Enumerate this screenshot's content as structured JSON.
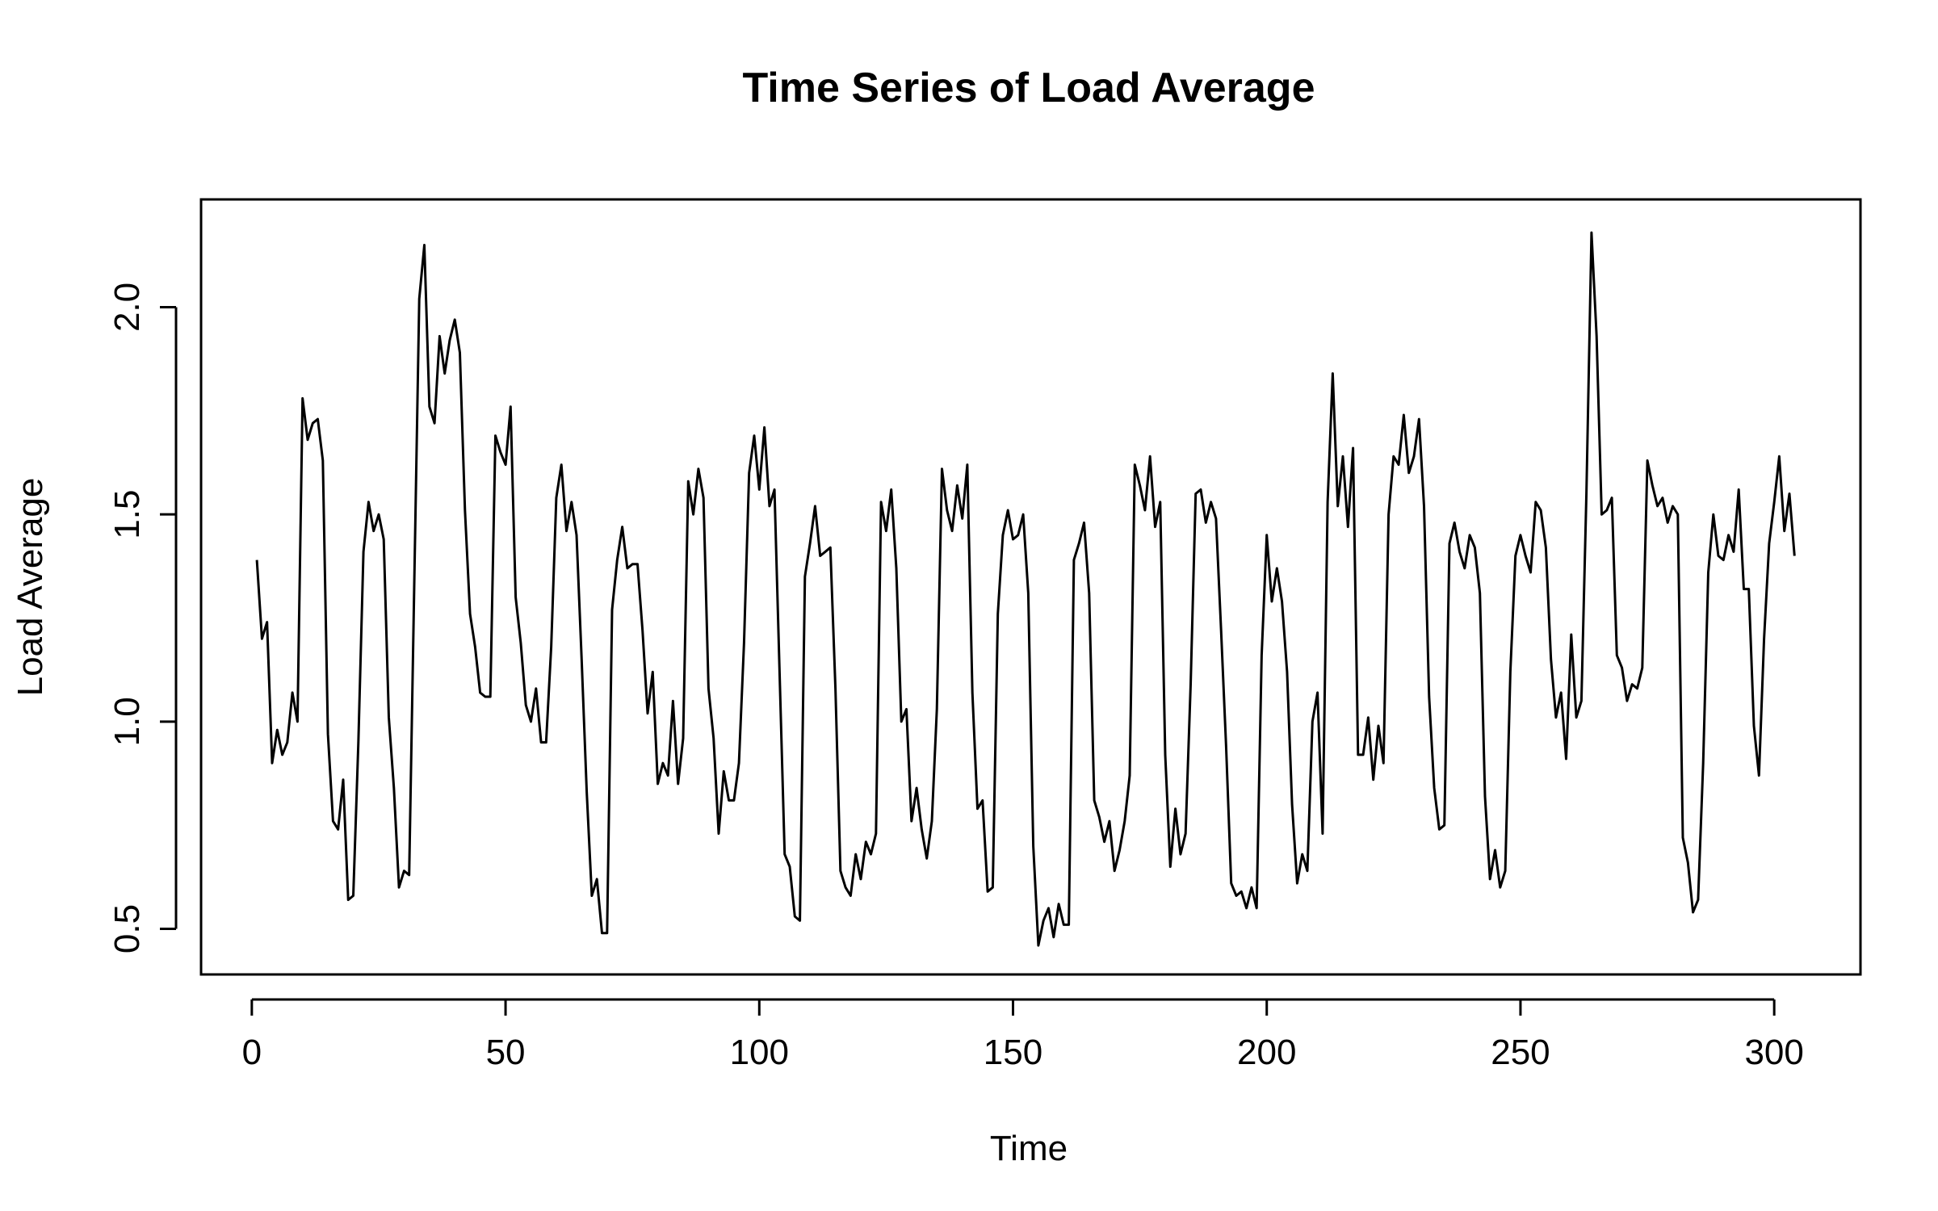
{
  "chart_data": {
    "type": "line",
    "title": "Time Series of Load Average",
    "xlabel": "Time",
    "ylabel": "Load Average",
    "xlim": [
      -10,
      317
    ],
    "ylim": [
      0.39,
      2.26
    ],
    "xticks": [
      0,
      50,
      100,
      150,
      200,
      250,
      300
    ],
    "yticks": [
      0.5,
      1.0,
      1.5,
      2.0
    ],
    "xtick_labels": [
      "0",
      "50",
      "100",
      "150",
      "200",
      "250",
      "300"
    ],
    "ytick_labels": [
      "0.5",
      "1.0",
      "1.5",
      "2.0"
    ],
    "grid": false,
    "legend": "none",
    "line_color": "#000000",
    "series": [
      {
        "x": [
          1,
          2,
          3,
          4,
          5,
          6,
          7,
          8,
          9,
          10,
          11,
          12,
          13,
          14,
          15,
          16,
          17,
          18,
          19,
          20,
          21,
          22,
          23,
          24,
          25,
          26,
          27,
          28,
          29,
          30,
          31,
          32,
          33,
          34,
          35,
          36,
          37,
          38,
          39,
          40,
          41,
          42,
          43,
          44,
          45,
          46,
          47,
          48,
          49,
          50,
          51,
          52,
          53,
          54,
          55,
          56,
          57,
          58,
          59,
          60,
          61,
          62,
          63,
          64,
          65,
          66,
          67,
          68,
          69,
          70,
          71,
          72,
          73,
          74,
          75,
          76,
          77,
          78,
          79,
          80,
          81,
          82,
          83,
          84,
          85,
          86,
          87,
          88,
          89,
          90,
          91,
          92,
          93,
          94,
          95,
          96,
          97,
          98,
          99,
          100,
          101,
          102,
          103,
          104,
          105,
          106,
          107,
          108,
          109,
          110,
          111,
          112,
          113,
          114,
          115,
          116,
          117,
          118,
          119,
          120,
          121,
          122,
          123,
          124,
          125,
          126,
          127,
          128,
          129,
          130,
          131,
          132,
          133,
          134,
          135,
          136,
          137,
          138,
          139,
          140,
          141,
          142,
          143,
          144,
          145,
          146,
          147,
          148,
          149,
          150,
          151,
          152,
          153,
          154,
          155,
          156,
          157,
          158,
          159,
          160,
          161,
          162,
          163,
          164,
          165,
          166,
          167,
          168,
          169,
          170,
          171,
          172,
          173,
          174,
          175,
          176,
          177,
          178,
          179,
          180,
          181,
          182,
          183,
          184,
          185,
          186,
          187,
          188,
          189,
          190,
          191,
          192,
          193,
          194,
          195,
          196,
          197,
          198,
          199,
          200,
          201,
          202,
          203,
          204,
          205,
          206,
          207,
          208,
          209,
          210,
          211,
          212,
          213,
          214,
          215,
          216,
          217,
          218,
          219,
          220,
          221,
          222,
          223,
          224,
          225,
          226,
          227,
          228,
          229,
          230,
          231,
          232,
          233,
          234,
          235,
          236,
          237,
          238,
          239,
          240,
          241,
          242,
          243,
          244,
          245,
          246,
          247,
          248,
          249,
          250,
          251,
          252,
          253,
          254,
          255,
          256,
          257,
          258,
          259,
          260,
          261,
          262,
          263,
          264,
          265,
          266,
          267,
          268,
          269,
          270,
          271,
          272,
          273,
          274,
          275,
          276,
          277,
          278,
          279,
          280,
          281,
          282,
          283,
          284,
          285,
          286,
          287,
          288,
          289,
          290,
          291,
          292,
          293,
          294,
          295,
          296,
          297,
          298,
          299,
          300,
          301,
          302,
          303,
          304
        ],
        "values": [
          1.39,
          1.2,
          1.24,
          0.9,
          0.98,
          0.92,
          0.95,
          1.07,
          1.0,
          1.78,
          1.68,
          1.72,
          1.73,
          1.63,
          0.97,
          0.76,
          0.74,
          0.86,
          0.57,
          0.58,
          0.95,
          1.41,
          1.53,
          1.46,
          1.5,
          1.44,
          1.01,
          0.84,
          0.6,
          0.64,
          0.63,
          1.32,
          2.02,
          2.15,
          1.76,
          1.72,
          1.93,
          1.84,
          1.92,
          1.97,
          1.89,
          1.51,
          1.26,
          1.18,
          1.07,
          1.06,
          1.06,
          1.69,
          1.65,
          1.62,
          1.76,
          1.3,
          1.19,
          1.04,
          1.0,
          1.08,
          0.95,
          0.95,
          1.18,
          1.54,
          1.62,
          1.46,
          1.53,
          1.45,
          1.15,
          0.83,
          0.58,
          0.62,
          0.49,
          0.49,
          1.27,
          1.39,
          1.47,
          1.37,
          1.38,
          1.38,
          1.22,
          1.02,
          1.12,
          0.85,
          0.9,
          0.87,
          1.05,
          0.85,
          0.96,
          1.58,
          1.5,
          1.61,
          1.54,
          1.08,
          0.96,
          0.73,
          0.88,
          0.81,
          0.81,
          0.9,
          1.19,
          1.6,
          1.69,
          1.56,
          1.71,
          1.52,
          1.56,
          1.12,
          0.68,
          0.65,
          0.53,
          0.52,
          1.35,
          1.43,
          1.52,
          1.4,
          1.41,
          1.42,
          1.08,
          0.64,
          0.6,
          0.58,
          0.68,
          0.62,
          0.71,
          0.68,
          0.73,
          1.53,
          1.46,
          1.56,
          1.37,
          1.0,
          1.03,
          0.76,
          0.84,
          0.74,
          0.67,
          0.76,
          1.03,
          1.61,
          1.51,
          1.46,
          1.57,
          1.49,
          1.62,
          1.07,
          0.79,
          0.81,
          0.59,
          0.6,
          1.26,
          1.45,
          1.51,
          1.44,
          1.45,
          1.5,
          1.31,
          0.7,
          0.46,
          0.52,
          0.55,
          0.48,
          0.56,
          0.51,
          0.51,
          1.39,
          1.43,
          1.48,
          1.31,
          0.81,
          0.77,
          0.71,
          0.76,
          0.64,
          0.69,
          0.76,
          0.87,
          1.62,
          1.57,
          1.51,
          1.64,
          1.47,
          1.53,
          0.92,
          0.65,
          0.79,
          0.68,
          0.73,
          1.09,
          1.55,
          1.56,
          1.48,
          1.53,
          1.49,
          1.22,
          0.94,
          0.61,
          0.58,
          0.59,
          0.55,
          0.6,
          0.55,
          1.16,
          1.45,
          1.29,
          1.37,
          1.29,
          1.12,
          0.8,
          0.61,
          0.68,
          0.64,
          1.0,
          1.07,
          0.73,
          1.53,
          1.84,
          1.52,
          1.64,
          1.47,
          1.66,
          0.92,
          0.92,
          1.01,
          0.86,
          0.99,
          0.9,
          1.5,
          1.64,
          1.62,
          1.74,
          1.6,
          1.64,
          1.73,
          1.52,
          1.06,
          0.84,
          0.74,
          0.75,
          1.43,
          1.48,
          1.41,
          1.37,
          1.45,
          1.42,
          1.31,
          0.82,
          0.62,
          0.69,
          0.6,
          0.64,
          1.12,
          1.4,
          1.45,
          1.4,
          1.36,
          1.53,
          1.51,
          1.42,
          1.15,
          1.01,
          1.07,
          0.91,
          1.21,
          1.01,
          1.05,
          1.55,
          2.18,
          1.93,
          1.5,
          1.51,
          1.54,
          1.16,
          1.13,
          1.05,
          1.09,
          1.08,
          1.13,
          1.63,
          1.57,
          1.52,
          1.54,
          1.48,
          1.52,
          1.5,
          0.72,
          0.66,
          0.54,
          0.57,
          0.9,
          1.36,
          1.5,
          1.4,
          1.39,
          1.45,
          1.41,
          1.56,
          1.32,
          1.32,
          0.99,
          0.87,
          1.2,
          1.43,
          1.53,
          1.64,
          1.46,
          1.55,
          1.4
        ]
      }
    ]
  }
}
